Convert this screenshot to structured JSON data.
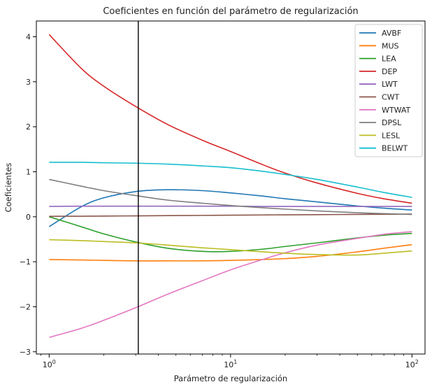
{
  "chart_data": {
    "type": "line",
    "title": "Coeficientes en función del parámetro de regularización",
    "xlabel": "Parámetro de regularización",
    "ylabel": "Coeficientes",
    "xscale": "log",
    "xlim": [
      0.85,
      118
    ],
    "ylim": [
      -3.05,
      4.35
    ],
    "grid": false,
    "legend_position": "top-right",
    "x_ticks": [
      {
        "value": 1,
        "base": "10",
        "exp": "0"
      },
      {
        "value": 10,
        "base": "10",
        "exp": "1"
      },
      {
        "value": 100,
        "base": "10",
        "exp": "2"
      }
    ],
    "y_ticks": [
      {
        "value": -3,
        "label": "−3"
      },
      {
        "value": -2,
        "label": "−2"
      },
      {
        "value": -1,
        "label": "−1"
      },
      {
        "value": 0,
        "label": "0"
      },
      {
        "value": 1,
        "label": "1"
      },
      {
        "value": 2,
        "label": "2"
      },
      {
        "value": 3,
        "label": "3"
      },
      {
        "value": 4,
        "label": "4"
      }
    ],
    "vline_x": 3.1,
    "x": [
      1,
      1.5,
      2,
      3,
      4.5,
      7,
      10,
      15,
      20,
      30,
      50,
      70,
      100
    ],
    "series": [
      {
        "name": "AVBF",
        "color": "#1f77b4",
        "values": [
          -0.22,
          0.22,
          0.42,
          0.56,
          0.6,
          0.58,
          0.53,
          0.46,
          0.4,
          0.33,
          0.24,
          0.19,
          0.15
        ]
      },
      {
        "name": "MUS",
        "color": "#ff7f0e",
        "values": [
          -0.95,
          -0.96,
          -0.97,
          -0.98,
          -0.98,
          -0.98,
          -0.97,
          -0.95,
          -0.93,
          -0.88,
          -0.78,
          -0.7,
          -0.62
        ]
      },
      {
        "name": "LEA",
        "color": "#2ca02c",
        "values": [
          0.0,
          -0.22,
          -0.38,
          -0.56,
          -0.7,
          -0.77,
          -0.77,
          -0.72,
          -0.66,
          -0.58,
          -0.47,
          -0.41,
          -0.37
        ]
      },
      {
        "name": "DEP",
        "color": "#d62728",
        "values": [
          4.05,
          3.3,
          2.9,
          2.45,
          2.05,
          1.7,
          1.45,
          1.16,
          0.97,
          0.75,
          0.52,
          0.4,
          0.3
        ]
      },
      {
        "name": "LWT",
        "color": "#9467bd",
        "values": [
          0.23,
          0.235,
          0.235,
          0.235,
          0.235,
          0.235,
          0.235,
          0.23,
          0.23,
          0.23,
          0.23,
          0.23,
          0.23
        ]
      },
      {
        "name": "CWT",
        "color": "#8c564b",
        "values": [
          0.01,
          0.012,
          0.015,
          0.02,
          0.025,
          0.03,
          0.035,
          0.04,
          0.043,
          0.047,
          0.052,
          0.055,
          0.06
        ]
      },
      {
        "name": "WTWAT",
        "color": "#e377c2",
        "values": [
          -2.68,
          -2.48,
          -2.3,
          -2.02,
          -1.72,
          -1.42,
          -1.18,
          -0.95,
          -0.8,
          -0.63,
          -0.48,
          -0.39,
          -0.33
        ]
      },
      {
        "name": "DPSL",
        "color": "#7f7f7f",
        "values": [
          0.83,
          0.68,
          0.58,
          0.47,
          0.37,
          0.3,
          0.25,
          0.2,
          0.17,
          0.13,
          0.09,
          0.07,
          0.05
        ]
      },
      {
        "name": "LESL",
        "color": "#bcbd22",
        "values": [
          -0.51,
          -0.53,
          -0.55,
          -0.58,
          -0.63,
          -0.69,
          -0.73,
          -0.78,
          -0.81,
          -0.84,
          -0.85,
          -0.81,
          -0.76
        ]
      },
      {
        "name": "BELWT",
        "color": "#17becf",
        "values": [
          1.21,
          1.21,
          1.2,
          1.19,
          1.17,
          1.13,
          1.09,
          1.01,
          0.94,
          0.83,
          0.66,
          0.54,
          0.43
        ]
      }
    ]
  }
}
